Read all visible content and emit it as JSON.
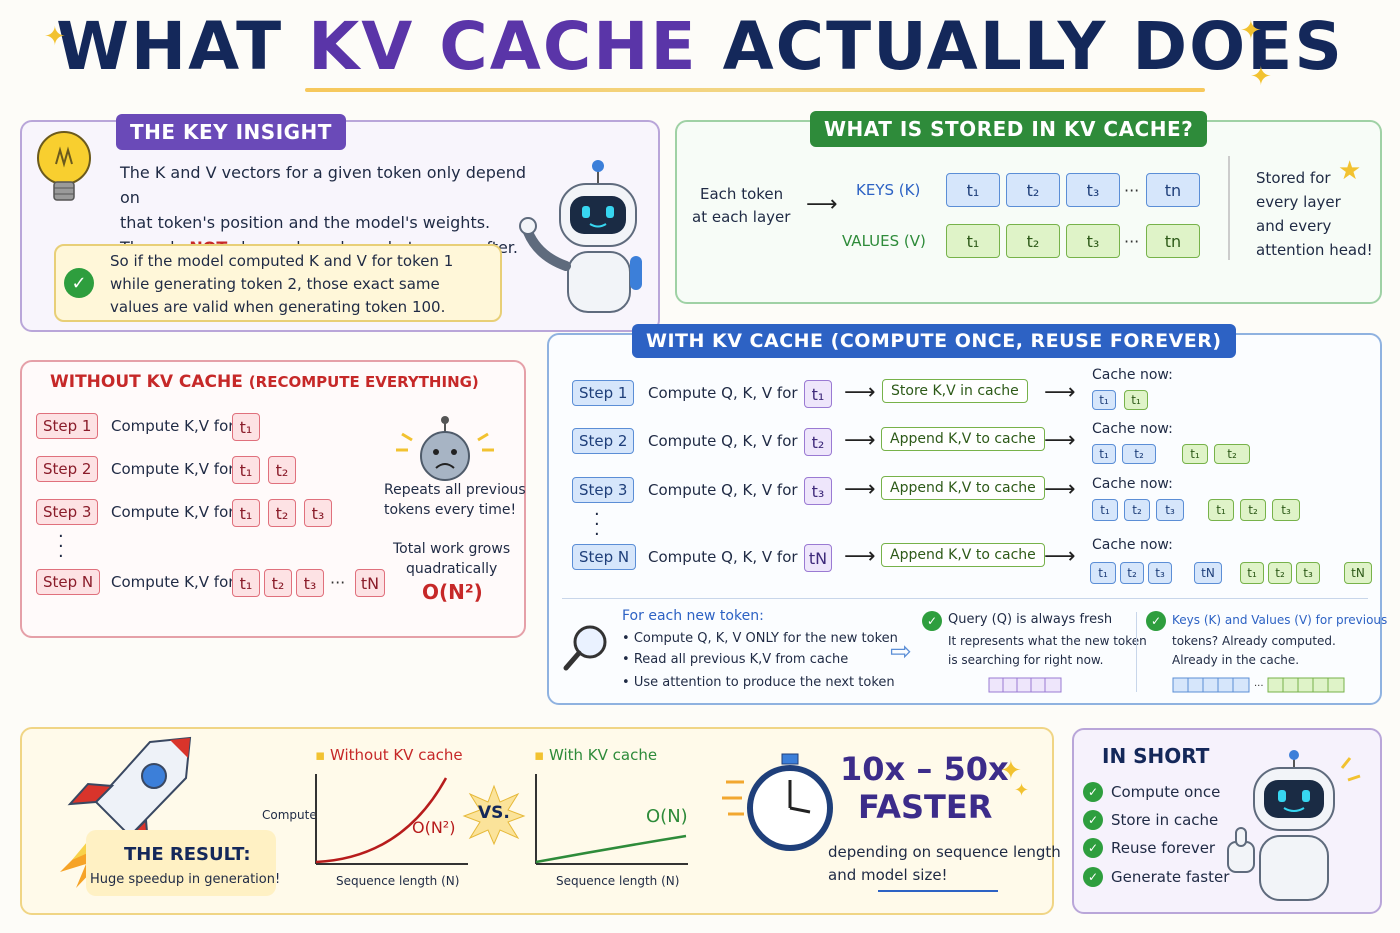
{
  "title": {
    "part1": "WHAT ",
    "highlight": "KV CACHE",
    "part2": " ACTUALLY DOES"
  },
  "key_insight": {
    "tag": "THE KEY INSIGHT",
    "line1": "The K and V vectors for a given token only depend on",
    "line2": "that token's position and the model's weights.",
    "line3_pre": "They do ",
    "line3_not": "NOT",
    "line3_post": " change based on what comes after.",
    "callout1": "So if the model computed K and V for token 1",
    "callout2": "while generating token 2, those exact same",
    "callout3": "values are valid when generating token 100."
  },
  "stored": {
    "tag": "WHAT IS STORED IN KV CACHE?",
    "each_token1": "Each token",
    "each_token2": "at each layer",
    "keys_label": "KEYS (K)",
    "values_label": "VALUES (V)",
    "tokens": [
      "t₁",
      "t₂",
      "t₃",
      "tn"
    ],
    "ellipsis": "···",
    "note": [
      "Stored for",
      "every layer",
      "and every",
      "attention head!"
    ]
  },
  "without": {
    "title": "WITHOUT KV CACHE",
    "subtitle": "(RECOMPUTE EVERYTHING)",
    "steps": [
      "Step 1",
      "Step 2",
      "Step 3",
      "Step N"
    ],
    "compute": "Compute K,V for",
    "tok": [
      "t₁",
      "t₂",
      "t₃",
      "tN"
    ],
    "ellipsis": "···",
    "repeats1": "Repeats all previous",
    "repeats2": "tokens every time!",
    "total1": "Total work grows",
    "total2": "quadratically",
    "complexity": "O(N²)"
  },
  "with": {
    "tag": "WITH KV CACHE (COMPUTE ONCE, REUSE FOREVER)",
    "steps": [
      "Step 1",
      "Step 2",
      "Step 3",
      "Step N"
    ],
    "compute": "Compute Q, K, V for",
    "step_tokens": [
      "t₁",
      "t₂",
      "t₃",
      "tN"
    ],
    "actions": [
      "Store K,V in cache",
      "Append K,V to cache",
      "Append K,V to cache",
      "Append K,V to cache"
    ],
    "cache_now": "Cache now:",
    "for_each": "For each new token:",
    "bullets": [
      "Compute Q, K, V ONLY for the new token",
      "Read all previous K,V from cache",
      "Use attention to produce the next token"
    ],
    "query_title": "Query (Q) is always fresh",
    "query_1": "It represents what the new token",
    "query_2": "is searching for right now.",
    "kv_title": "Keys (K) and Values (V) for previous",
    "kv_1": "tokens? Already computed.",
    "kv_2": "Already in the cache."
  },
  "result": {
    "label": "THE RESULT:",
    "sub": "Huge speedup in generation!",
    "chart_without_title": "Without KV cache",
    "chart_with_title": "With KV cache",
    "ylabel": "Compute",
    "xlabel": "Sequence length (N)",
    "quad": "O(N²)",
    "lin": "O(N)",
    "vs": "VS.",
    "speed1": "10x – 50x",
    "speed2": "FASTER",
    "dep1": "depending on sequence length",
    "dep2": "and model size!"
  },
  "short": {
    "title": "IN SHORT",
    "items": [
      "Compute once",
      "Store in cache",
      "Reuse forever",
      "Generate faster"
    ]
  },
  "colors": {
    "navy": "#14285a",
    "purple": "#5a35a8",
    "green": "#2e8b3a",
    "blue": "#2d62c4",
    "red": "#c62828"
  }
}
